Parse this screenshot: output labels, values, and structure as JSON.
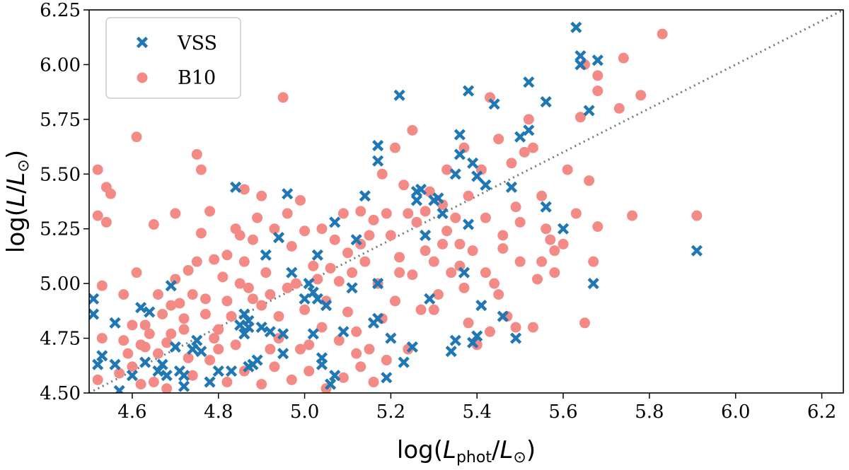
{
  "chart_data": {
    "type": "scatter",
    "title": "",
    "xlabel": {
      "prefix": "log(",
      "var": "L",
      "sub": "phot",
      "slash": "/",
      "var2": "L",
      "sun": "⊙",
      "suffix": ")"
    },
    "ylabel": {
      "prefix": "log(",
      "var": "L",
      "slash": "/",
      "var2": "L",
      "sun": "⊙",
      "suffix": ")"
    },
    "xlim": [
      4.5,
      6.25
    ],
    "ylim": [
      4.5,
      6.25
    ],
    "xticks": [
      4.6,
      4.8,
      5.0,
      5.2,
      5.4,
      5.6,
      5.8,
      6.0,
      6.2
    ],
    "xtick_labels": [
      "4.6",
      "4.8",
      "5.0",
      "5.2",
      "5.4",
      "5.6",
      "5.8",
      "6.0",
      "6.2"
    ],
    "yticks": [
      4.5,
      4.75,
      5.0,
      5.25,
      5.5,
      5.75,
      6.0,
      6.25
    ],
    "ytick_labels": [
      "4.50",
      "4.75",
      "5.00",
      "5.25",
      "5.50",
      "5.75",
      "6.00",
      "6.25"
    ],
    "reference_line": {
      "style": "dotted",
      "color": "#777777",
      "from": [
        4.5,
        4.5
      ],
      "to": [
        6.25,
        6.25
      ]
    },
    "legend_location": "upper-left",
    "series": [
      {
        "name": "VSS",
        "marker": "x",
        "color": "#1f77b4",
        "points": [
          [
            4.51,
            4.93
          ],
          [
            4.51,
            4.86
          ],
          [
            4.53,
            4.67
          ],
          [
            4.52,
            4.63
          ],
          [
            4.56,
            4.82
          ],
          [
            4.57,
            4.51
          ],
          [
            4.56,
            4.63
          ],
          [
            4.6,
            4.58
          ],
          [
            4.62,
            4.89
          ],
          [
            4.64,
            4.87
          ],
          [
            4.63,
            4.64
          ],
          [
            4.66,
            4.6
          ],
          [
            4.67,
            4.63
          ],
          [
            4.68,
            4.58
          ],
          [
            4.69,
            4.99
          ],
          [
            4.7,
            4.71
          ],
          [
            4.72,
            4.58
          ],
          [
            4.72,
            4.53
          ],
          [
            4.71,
            4.6
          ],
          [
            4.74,
            4.7
          ],
          [
            4.75,
            4.74
          ],
          [
            4.76,
            4.69
          ],
          [
            4.78,
            4.55
          ],
          [
            4.8,
            4.6
          ],
          [
            4.83,
            4.6
          ],
          [
            4.84,
            5.44
          ],
          [
            4.85,
            4.81
          ],
          [
            4.86,
            4.77
          ],
          [
            4.87,
            4.8
          ],
          [
            4.87,
            4.83
          ],
          [
            4.86,
            4.86
          ],
          [
            4.88,
            4.63
          ],
          [
            4.87,
            4.62
          ],
          [
            4.89,
            4.65
          ],
          [
            4.9,
            4.8
          ],
          [
            4.91,
            5.13
          ],
          [
            4.92,
            4.78
          ],
          [
            4.94,
            5.21
          ],
          [
            4.95,
            4.77
          ],
          [
            4.95,
            4.68
          ],
          [
            4.96,
            5.41
          ],
          [
            4.97,
            5.05
          ],
          [
            5.0,
            4.93
          ],
          [
            5.01,
            5.0
          ],
          [
            5.02,
            4.96
          ],
          [
            5.03,
            4.93
          ],
          [
            5.02,
            4.77
          ],
          [
            5.04,
            4.66
          ],
          [
            5.04,
            4.63
          ],
          [
            5.03,
            5.13
          ],
          [
            5.05,
            4.9
          ],
          [
            5.06,
            4.54
          ],
          [
            5.07,
            4.58
          ],
          [
            5.07,
            5.28
          ],
          [
            5.09,
            4.78
          ],
          [
            5.11,
            4.98
          ],
          [
            5.12,
            5.2
          ],
          [
            5.14,
            5.4
          ],
          [
            5.17,
            5.63
          ],
          [
            5.17,
            5.56
          ],
          [
            5.16,
            4.82
          ],
          [
            5.17,
            4.84
          ],
          [
            5.17,
            5.0
          ],
          [
            5.19,
            4.57
          ],
          [
            5.2,
            4.75
          ],
          [
            5.22,
            5.86
          ],
          [
            5.23,
            4.64
          ],
          [
            5.25,
            4.71
          ],
          [
            5.26,
            5.42
          ],
          [
            5.26,
            5.38
          ],
          [
            5.27,
            5.43
          ],
          [
            5.28,
            5.22
          ],
          [
            5.29,
            4.93
          ],
          [
            5.3,
            5.38
          ],
          [
            5.31,
            5.39
          ],
          [
            5.32,
            5.32
          ],
          [
            5.34,
            4.69
          ],
          [
            5.35,
            4.74
          ],
          [
            5.35,
            5.5
          ],
          [
            5.36,
            5.59
          ],
          [
            5.36,
            5.68
          ],
          [
            5.37,
            5.05
          ],
          [
            5.38,
            5.27
          ],
          [
            5.38,
            5.88
          ],
          [
            5.39,
            5.55
          ],
          [
            5.4,
            5.49
          ],
          [
            5.39,
            4.73
          ],
          [
            5.4,
            4.76
          ],
          [
            5.41,
            4.9
          ],
          [
            5.42,
            5.45
          ],
          [
            5.44,
            5.82
          ],
          [
            5.46,
            4.85
          ],
          [
            5.48,
            5.44
          ],
          [
            5.49,
            4.75
          ],
          [
            5.5,
            5.67
          ],
          [
            5.52,
            5.7
          ],
          [
            5.52,
            5.92
          ],
          [
            5.56,
            5.35
          ],
          [
            5.56,
            5.83
          ],
          [
            5.6,
            5.25
          ],
          [
            5.63,
            6.17
          ],
          [
            5.64,
            6.04
          ],
          [
            5.64,
            6.0
          ],
          [
            5.66,
            5.79
          ],
          [
            5.67,
            5.0
          ],
          [
            5.68,
            6.02
          ],
          [
            5.91,
            5.15
          ]
        ]
      },
      {
        "name": "B10",
        "marker": "o",
        "color": "#f48a86",
        "points": [
          [
            4.52,
            5.31
          ],
          [
            4.52,
            5.52
          ],
          [
            4.54,
            5.44
          ],
          [
            4.55,
            5.41
          ],
          [
            4.54,
            5.28
          ],
          [
            4.53,
            4.99
          ],
          [
            4.53,
            4.75
          ],
          [
            4.52,
            4.56
          ],
          [
            4.57,
            4.59
          ],
          [
            4.58,
            4.95
          ],
          [
            4.58,
            4.74
          ],
          [
            4.59,
            4.68
          ],
          [
            4.6,
            4.81
          ],
          [
            4.61,
            5.05
          ],
          [
            4.61,
            5.67
          ],
          [
            4.62,
            4.54
          ],
          [
            4.63,
            4.71
          ],
          [
            4.63,
            4.81
          ],
          [
            4.64,
            4.77
          ],
          [
            4.65,
            5.27
          ],
          [
            4.66,
            4.95
          ],
          [
            4.67,
            4.86
          ],
          [
            4.68,
            4.73
          ],
          [
            4.69,
            4.9
          ],
          [
            4.7,
            5.02
          ],
          [
            4.7,
            5.32
          ],
          [
            4.71,
            4.91
          ],
          [
            4.72,
            4.79
          ],
          [
            4.73,
            5.06
          ],
          [
            4.73,
            4.66
          ],
          [
            4.74,
            4.95
          ],
          [
            4.75,
            5.59
          ],
          [
            4.76,
            5.52
          ],
          [
            4.76,
            5.23
          ],
          [
            4.77,
            4.93
          ],
          [
            4.77,
            4.86
          ],
          [
            4.78,
            5.33
          ],
          [
            4.79,
            5.11
          ],
          [
            4.8,
            4.79
          ],
          [
            4.8,
            4.7
          ],
          [
            4.81,
            5.03
          ],
          [
            4.82,
            4.92
          ],
          [
            4.82,
            5.13
          ],
          [
            4.83,
            4.85
          ],
          [
            4.84,
            5.25
          ],
          [
            4.85,
            5.22
          ],
          [
            4.86,
            5.1
          ],
          [
            4.86,
            5.43
          ],
          [
            4.87,
            4.98
          ],
          [
            4.88,
            4.93
          ],
          [
            4.88,
            5.2
          ],
          [
            4.89,
            5.3
          ],
          [
            4.9,
            4.9
          ],
          [
            4.9,
            5.4
          ],
          [
            4.91,
            5.05
          ],
          [
            4.92,
            4.95
          ],
          [
            4.92,
            4.7
          ],
          [
            4.93,
            5.25
          ],
          [
            4.94,
            4.85
          ],
          [
            4.95,
            5.85
          ],
          [
            4.96,
            5.32
          ],
          [
            4.96,
            4.98
          ],
          [
            4.97,
            5.17
          ],
          [
            4.98,
            5.0
          ],
          [
            4.99,
            5.38
          ],
          [
            5.0,
            5.24
          ],
          [
            5.0,
            4.88
          ],
          [
            5.01,
            4.72
          ],
          [
            5.02,
            5.08
          ],
          [
            5.03,
            5.02
          ],
          [
            5.04,
            5.25
          ],
          [
            5.05,
            4.92
          ],
          [
            5.06,
            5.07
          ],
          [
            5.07,
            5.2
          ],
          [
            5.08,
            5.01
          ],
          [
            5.09,
            5.32
          ],
          [
            5.1,
            4.87
          ],
          [
            5.1,
            5.14
          ],
          [
            5.11,
            5.05
          ],
          [
            5.12,
            4.78
          ],
          [
            5.13,
            5.33
          ],
          [
            5.13,
            5.18
          ],
          [
            5.14,
            5.1
          ],
          [
            5.15,
            4.7
          ],
          [
            5.16,
            5.29
          ],
          [
            5.17,
            5.0
          ],
          [
            5.18,
            5.5
          ],
          [
            5.18,
            4.84
          ],
          [
            5.19,
            5.32
          ],
          [
            5.2,
            5.22
          ],
          [
            5.21,
            5.62
          ],
          [
            5.21,
            4.92
          ],
          [
            5.22,
            5.12
          ],
          [
            5.23,
            5.45
          ],
          [
            5.24,
            5.32
          ],
          [
            5.25,
            5.04
          ],
          [
            5.25,
            5.7
          ],
          [
            5.26,
            5.28
          ],
          [
            5.27,
            4.88
          ],
          [
            5.28,
            5.15
          ],
          [
            5.29,
            5.42
          ],
          [
            5.3,
            5.1
          ],
          [
            5.31,
            4.95
          ],
          [
            5.32,
            5.36
          ],
          [
            5.33,
            5.24
          ],
          [
            5.33,
            5.52
          ],
          [
            5.34,
            5.05
          ],
          [
            5.35,
            5.3
          ],
          [
            5.36,
            5.18
          ],
          [
            5.37,
            5.62
          ],
          [
            5.37,
            4.98
          ],
          [
            5.38,
            5.4
          ],
          [
            5.39,
            5.15
          ],
          [
            5.4,
            4.72
          ],
          [
            5.41,
            5.52
          ],
          [
            5.42,
            5.3
          ],
          [
            5.43,
            5.85
          ],
          [
            5.44,
            5.0
          ],
          [
            5.45,
            5.66
          ],
          [
            5.46,
            5.22
          ],
          [
            5.47,
            4.85
          ],
          [
            5.48,
            5.55
          ],
          [
            5.49,
            5.35
          ],
          [
            5.5,
            5.1
          ],
          [
            5.51,
            5.6
          ],
          [
            5.52,
            5.75
          ],
          [
            5.53,
            5.62
          ],
          [
            5.54,
            5.02
          ],
          [
            5.55,
            5.4
          ],
          [
            5.56,
            5.25
          ],
          [
            5.57,
            5.2
          ],
          [
            5.58,
            5.15
          ],
          [
            5.6,
            5.18
          ],
          [
            5.61,
            5.52
          ],
          [
            5.63,
            5.32
          ],
          [
            5.64,
            5.76
          ],
          [
            5.65,
            4.82
          ],
          [
            5.65,
            6.0
          ],
          [
            5.66,
            5.47
          ],
          [
            5.67,
            5.1
          ],
          [
            5.68,
            5.26
          ],
          [
            5.68,
            5.95
          ],
          [
            5.68,
            5.88
          ],
          [
            5.73,
            5.8
          ],
          [
            5.74,
            6.03
          ],
          [
            5.76,
            5.31
          ],
          [
            5.78,
            5.86
          ],
          [
            5.83,
            6.14
          ],
          [
            5.91,
            5.31
          ],
          [
            4.6,
            4.62
          ],
          [
            4.65,
            4.55
          ],
          [
            4.68,
            4.52
          ],
          [
            4.74,
            4.58
          ],
          [
            4.78,
            4.65
          ],
          [
            4.82,
            4.55
          ],
          [
            4.86,
            4.6
          ],
          [
            4.9,
            4.54
          ],
          [
            4.93,
            4.62
          ],
          [
            4.97,
            4.56
          ],
          [
            5.01,
            4.6
          ],
          [
            5.05,
            4.52
          ],
          [
            5.09,
            4.57
          ],
          [
            5.13,
            4.62
          ],
          [
            5.16,
            4.55
          ],
          [
            4.79,
            4.75
          ],
          [
            4.84,
            4.72
          ],
          [
            4.94,
            4.75
          ],
          [
            4.99,
            4.7
          ],
          [
            5.04,
            4.8
          ],
          [
            5.08,
            4.74
          ],
          [
            5.12,
            4.68
          ],
          [
            5.19,
            4.65
          ],
          [
            5.24,
            4.7
          ],
          [
            4.85,
            5.0
          ],
          [
            4.75,
            5.1
          ],
          [
            4.72,
            4.84
          ],
          [
            4.66,
            4.68
          ],
          [
            4.69,
            4.77
          ],
          [
            4.62,
            4.72
          ],
          [
            5.15,
            5.22
          ],
          [
            5.22,
            5.05
          ],
          [
            5.28,
            5.33
          ],
          [
            5.32,
            5.18
          ],
          [
            5.36,
            5.08
          ],
          [
            5.42,
            5.05
          ],
          [
            5.46,
            5.16
          ],
          [
            5.5,
            5.28
          ],
          [
            5.55,
            5.1
          ],
          [
            5.58,
            5.05
          ],
          [
            5.45,
            4.95
          ],
          [
            5.43,
            4.78
          ],
          [
            5.49,
            4.8
          ],
          [
            5.53,
            4.8
          ],
          [
            5.38,
            4.82
          ],
          [
            5.3,
            4.88
          ]
        ]
      }
    ]
  }
}
